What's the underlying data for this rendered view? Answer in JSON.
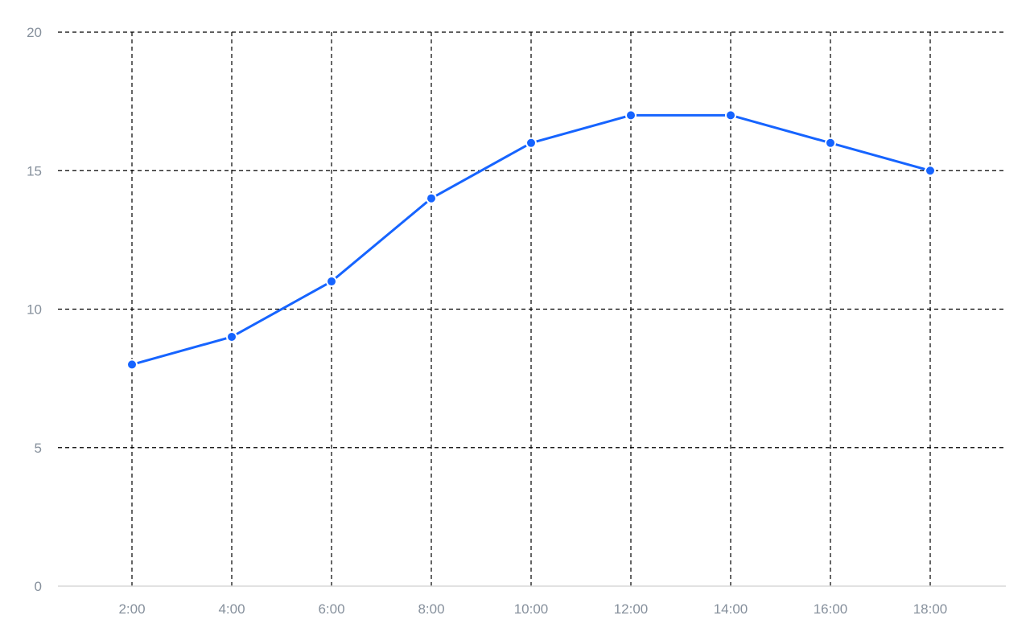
{
  "chart_data": {
    "type": "line",
    "title": "",
    "xlabel": "",
    "ylabel": "",
    "categories": [
      "2:00",
      "4:00",
      "6:00",
      "8:00",
      "10:00",
      "12:00",
      "14:00",
      "16:00",
      "18:00"
    ],
    "series": [
      {
        "values": [
          8,
          9,
          11,
          14,
          16,
          17,
          17,
          16,
          15
        ]
      }
    ],
    "ylim": [
      0,
      20
    ],
    "yticks": [
      "0",
      "5",
      "10",
      "15",
      "20"
    ],
    "grid": true,
    "grid_style": "dashed",
    "legend": "none",
    "colors": {
      "series": "#1664ff",
      "tick_label": "#86909c",
      "grid": "#000000",
      "axis": "#d9d9d9"
    }
  }
}
